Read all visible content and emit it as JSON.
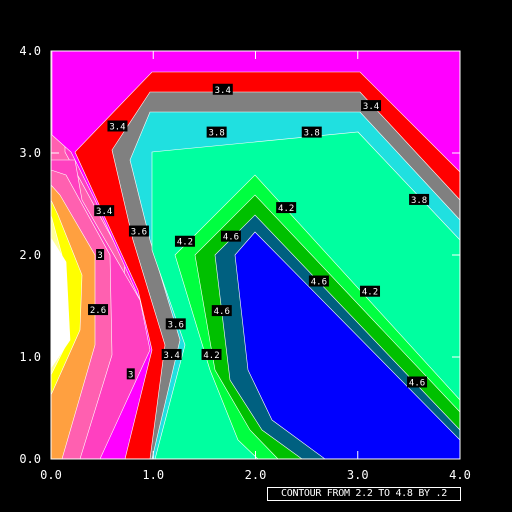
{
  "chart_data": {
    "type": "contour",
    "caption": "CONTOUR FROM 2.2 TO 4.8 BY .2",
    "xlim": [
      0.0,
      4.0
    ],
    "ylim": [
      0.0,
      4.0
    ],
    "x_ticks": [
      "0.0",
      "1.0",
      "2.0",
      "3.0",
      "4.0"
    ],
    "y_ticks": [
      "0.0",
      "1.0",
      "2.0",
      "3.0",
      "4.0"
    ],
    "levels": [
      2.2,
      2.4,
      2.6,
      2.8,
      3.0,
      3.2,
      3.4,
      3.6,
      3.8,
      4.0,
      4.2,
      4.4,
      4.6,
      4.8
    ],
    "fill_colors": {
      "background": "#ffffff",
      "bands": [
        "#ffff99",
        "#ffff00",
        "#ffa040",
        "#ff60b0",
        "#ff40c0",
        "#ff0000",
        "#808080",
        "#20e0e0",
        "#00ffa0",
        "#00ff40",
        "#00c000",
        "#006080",
        "#0000ff"
      ],
      "top_region": "#ff00ff"
    },
    "contour_labels": [
      {
        "text": "3.4",
        "x": 1.68,
        "y": 3.62
      },
      {
        "text": "3.4",
        "x": 3.13,
        "y": 3.46
      },
      {
        "text": "3.4",
        "x": 0.65,
        "y": 3.26
      },
      {
        "text": "3.8",
        "x": 1.62,
        "y": 3.2
      },
      {
        "text": "3.8",
        "x": 2.55,
        "y": 3.2
      },
      {
        "text": "3.8",
        "x": 3.6,
        "y": 2.54
      },
      {
        "text": "3.4",
        "x": 0.52,
        "y": 2.43
      },
      {
        "text": "3.6",
        "x": 0.86,
        "y": 2.23
      },
      {
        "text": "4.2",
        "x": 2.3,
        "y": 2.46
      },
      {
        "text": "4.2",
        "x": 1.31,
        "y": 2.13
      },
      {
        "text": "4.6",
        "x": 1.76,
        "y": 2.18
      },
      {
        "text": "3",
        "x": 0.48,
        "y": 2.0
      },
      {
        "text": "4.6",
        "x": 2.62,
        "y": 1.74
      },
      {
        "text": "4.2",
        "x": 3.12,
        "y": 1.64
      },
      {
        "text": "2.6",
        "x": 0.46,
        "y": 1.46
      },
      {
        "text": "3.6",
        "x": 1.22,
        "y": 1.32
      },
      {
        "text": "4.6",
        "x": 1.67,
        "y": 1.45
      },
      {
        "text": "3.4",
        "x": 1.18,
        "y": 1.02
      },
      {
        "text": "4.2",
        "x": 1.57,
        "y": 1.02
      },
      {
        "text": "3",
        "x": 0.78,
        "y": 0.83
      },
      {
        "text": "4.6",
        "x": 3.58,
        "y": 0.75
      }
    ]
  }
}
